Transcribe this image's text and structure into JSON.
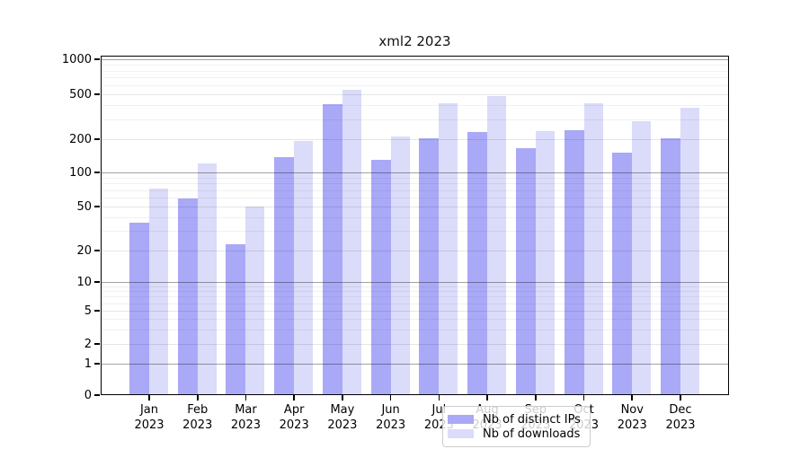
{
  "title": "xml2 2023",
  "chart_data": {
    "type": "bar",
    "title": "xml2 2023",
    "categories": [
      "Jan",
      "Feb",
      "Mar",
      "Apr",
      "May",
      "Jun",
      "Jul",
      "Aug",
      "Sep",
      "Oct",
      "Nov",
      "Dec"
    ],
    "category_year": "2023",
    "series": [
      {
        "name": "Nb of distinct IPs",
        "color": "#a9a9f7",
        "values": [
          36,
          59,
          23,
          137,
          410,
          130,
          203,
          232,
          166,
          240,
          151,
          203
        ]
      },
      {
        "name": "Nb of downloads",
        "color": "#dbdbfa",
        "values": [
          72,
          120,
          50,
          192,
          550,
          211,
          415,
          480,
          235,
          415,
          288,
          380
        ]
      }
    ],
    "xlabel": "",
    "ylabel": "",
    "yscale": "symlog",
    "ylim": [
      0,
      1000
    ],
    "yticks": [
      0,
      1,
      2,
      5,
      10,
      20,
      50,
      100,
      200,
      500,
      1000
    ],
    "major_gridline_values": [
      1,
      10,
      100,
      1000
    ],
    "mid_gridline_values": [
      2,
      5,
      20,
      50,
      200,
      500
    ],
    "minor_gridline_values": [
      3,
      4,
      6,
      7,
      8,
      9,
      30,
      40,
      60,
      70,
      80,
      90,
      300,
      400,
      600,
      700,
      800,
      900
    ],
    "grid": true,
    "legend_position": "lower center",
    "legend_entries": [
      "Nb of distinct IPs",
      "Nb of downloads"
    ]
  },
  "colors": {
    "background": "#ffffff",
    "bar_distinct_ips": "#a9a9f7",
    "bar_downloads": "#dbdbfa",
    "axis": "#000000",
    "major_grid": "#a6a6a6",
    "minor_grid": "#ededed",
    "legend_border": "#cccccc"
  }
}
